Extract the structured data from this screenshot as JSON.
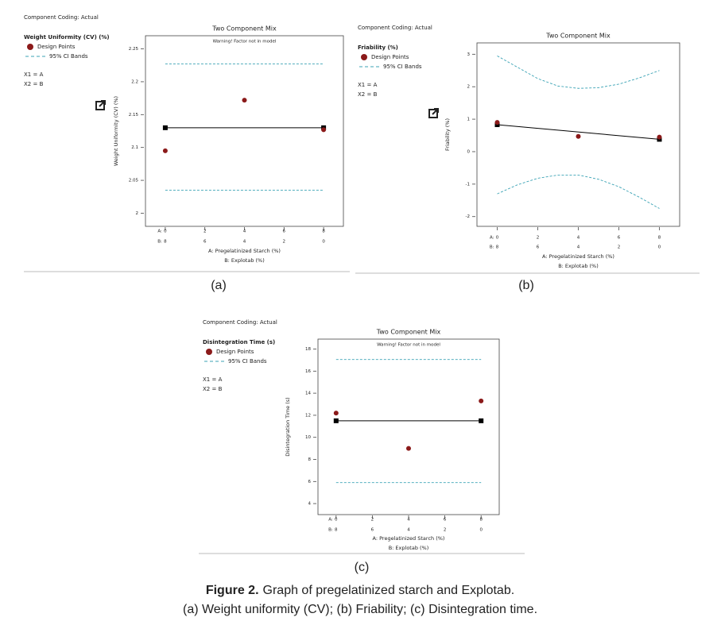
{
  "chart_data": [
    {
      "type": "line",
      "panel": "(a)",
      "coding": "Component Coding: Actual",
      "response": "Weight Uniformity (CV) (%)",
      "x1_label": "X1 = A",
      "x2_label": "X2 = B",
      "title": "Two Component Mix",
      "warning": "Warning! Factor not in model",
      "ylabel": "Weight Uniformity (CV) (%)",
      "xlabel": "A: Pregelatinized Starch (%)",
      "x2label": "B: Explotab (%)",
      "x_prefix": "A:",
      "x2_prefix": "B:",
      "xlim": [
        -1,
        9
      ],
      "xticks": [
        0,
        2,
        4,
        6,
        8
      ],
      "x2lim": [
        9,
        -1
      ],
      "x2ticks": [
        8,
        6,
        4,
        2,
        0
      ],
      "ylim": [
        1.98,
        2.27
      ],
      "yticks": [
        2,
        2.05,
        2.1,
        2.15,
        2.2,
        2.25
      ],
      "series": [
        {
          "name": "Design Points",
          "color": "#8b1a1a",
          "marker": "circle",
          "x": [
            0,
            4,
            8
          ],
          "values": [
            2.095,
            2.172,
            2.127
          ]
        },
        {
          "name": "95% CI Bands",
          "color": "#3ba3b5",
          "dash": true,
          "x": [
            0,
            8
          ],
          "values": [
            2.227,
            2.227
          ]
        },
        {
          "color": "#3ba3b5",
          "dash": true,
          "x": [
            0,
            8
          ],
          "values": [
            2.035,
            2.035
          ]
        },
        {
          "color": "#000000",
          "marker": "square",
          "x": [
            0,
            8
          ],
          "values": [
            2.13,
            2.13
          ]
        }
      ]
    },
    {
      "type": "line",
      "panel": "(b)",
      "coding": "Component Coding: Actual",
      "response": "Friability (%)",
      "x1_label": "X1 = A",
      "x2_label": "X2 = B",
      "title": "Two Component Mix",
      "ylabel": "Friability (%)",
      "xlabel": "A: Pregelatinized Starch (%)",
      "x2label": "B: Explotab (%)",
      "x_prefix": "A:",
      "x2_prefix": "B:",
      "xlim": [
        -1,
        9
      ],
      "xticks": [
        0,
        2,
        4,
        6,
        8
      ],
      "x2lim": [
        9,
        -1
      ],
      "x2ticks": [
        8,
        6,
        4,
        2,
        0
      ],
      "ylim": [
        -2.3,
        3.35
      ],
      "yticks": [
        -2,
        -1,
        0,
        1,
        2,
        3
      ],
      "series": [
        {
          "name": "Design Points",
          "color": "#8b1a1a",
          "marker": "circle",
          "x": [
            0,
            4,
            8
          ],
          "values": [
            0.9,
            0.47,
            0.45
          ]
        },
        {
          "name": "95% CI Bands",
          "color": "#3ba3b5",
          "dash": true,
          "x": [
            0,
            1,
            2,
            3,
            4,
            5,
            6,
            7,
            8
          ],
          "values": [
            2.95,
            2.6,
            2.25,
            2.02,
            1.95,
            1.97,
            2.08,
            2.27,
            2.5
          ]
        },
        {
          "color": "#3ba3b5",
          "dash": true,
          "x": [
            0,
            1,
            2,
            3,
            4,
            5,
            6,
            7,
            8
          ],
          "values": [
            -1.3,
            -1.02,
            -0.82,
            -0.72,
            -0.72,
            -0.85,
            -1.08,
            -1.4,
            -1.75
          ]
        },
        {
          "color": "#000000",
          "marker": "square",
          "x": [
            0,
            8
          ],
          "values": [
            0.83,
            0.38
          ]
        }
      ]
    },
    {
      "type": "line",
      "panel": "(c)",
      "coding": "Component Coding: Actual",
      "response": "Disintegration Time (s)",
      "x1_label": "X1 = A",
      "x2_label": "X2 = B",
      "title": "Two Component Mix",
      "warning": "Warning! Factor not in model",
      "ylabel": "Disintegration Time (s)",
      "xlabel": "A: Pregelatinized Starch (%)",
      "x2label": "B: Explotab (%)",
      "x_prefix": "A:",
      "x2_prefix": "B:",
      "xlim": [
        -1,
        9
      ],
      "xticks": [
        0,
        2,
        4,
        6,
        8
      ],
      "x2lim": [
        9,
        -1
      ],
      "x2ticks": [
        8,
        6,
        4,
        2,
        0
      ],
      "ylim": [
        3,
        18.9
      ],
      "yticks": [
        4,
        6,
        8,
        10,
        12,
        14,
        16,
        18
      ],
      "series": [
        {
          "name": "Design Points",
          "color": "#8b1a1a",
          "marker": "circle",
          "x": [
            0,
            4,
            8
          ],
          "values": [
            12.2,
            9.0,
            13.3
          ]
        },
        {
          "name": "95% CI Bands",
          "color": "#3ba3b5",
          "dash": true,
          "x": [
            0,
            8
          ],
          "values": [
            17.05,
            17.05
          ]
        },
        {
          "color": "#3ba3b5",
          "dash": true,
          "x": [
            0,
            8
          ],
          "values": [
            5.9,
            5.9
          ]
        },
        {
          "color": "#000000",
          "marker": "square",
          "x": [
            0,
            8
          ],
          "values": [
            11.5,
            11.5
          ]
        }
      ]
    }
  ],
  "caption": {
    "label": "Figure 2.",
    "title": "Graph of pregelatinized starch and Explotab.",
    "line2": "(a) Weight uniformity (CV); (b) Friability; (c) Disintegration time."
  }
}
